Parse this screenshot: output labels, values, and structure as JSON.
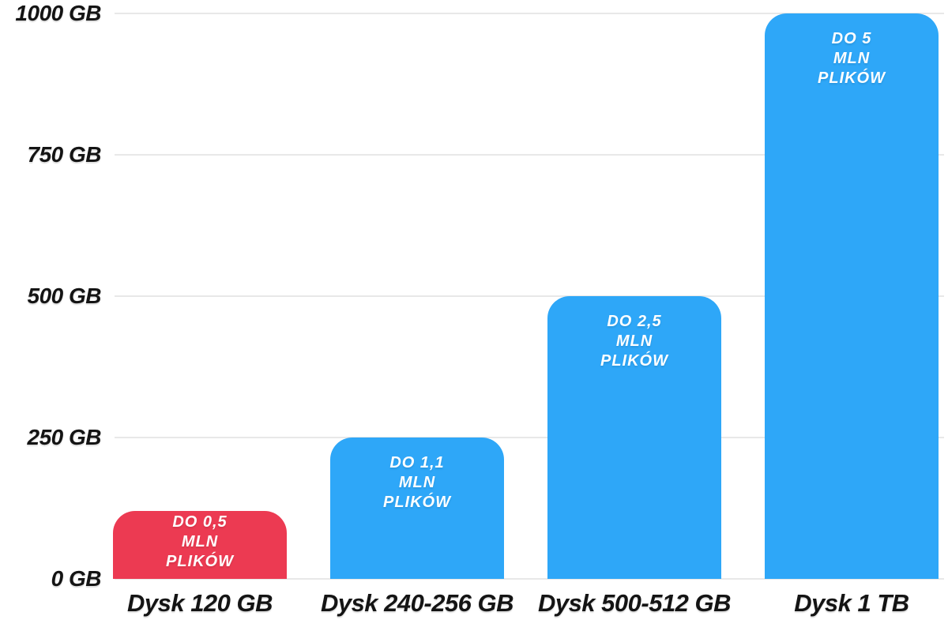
{
  "chart_data": {
    "type": "bar",
    "title": "",
    "xlabel": "",
    "ylabel": "",
    "categories": [
      "Dysk 120 GB",
      "Dysk 240-256 GB",
      "Dysk 500-512 GB",
      "Dysk 1 TB"
    ],
    "values": [
      120,
      250,
      500,
      1000
    ],
    "bar_labels": [
      [
        "DO 0,5",
        "MLN",
        "PLIKÓW"
      ],
      [
        "DO 1,1",
        "MLN",
        "PLIKÓW"
      ],
      [
        "DO 2,5",
        "MLN",
        "PLIKÓW"
      ],
      [
        "DO 5",
        "MLN",
        "PLIKÓW"
      ]
    ],
    "bar_colors": [
      "#ec3a52",
      "#2ea7f8",
      "#2ea7f8",
      "#2ea7f8"
    ],
    "y_ticks": [
      "1000 GB",
      "750 GB",
      "500 GB",
      "250 GB",
      "0 GB"
    ],
    "y_tick_values": [
      1000,
      750,
      500,
      250,
      0
    ],
    "ylim": [
      0,
      1000
    ],
    "grid": true,
    "legend": false,
    "gridline_color": "#e8e8e8",
    "text_color": "#141414",
    "bar_text_color": "#ffffff",
    "background": "#ffffff"
  }
}
